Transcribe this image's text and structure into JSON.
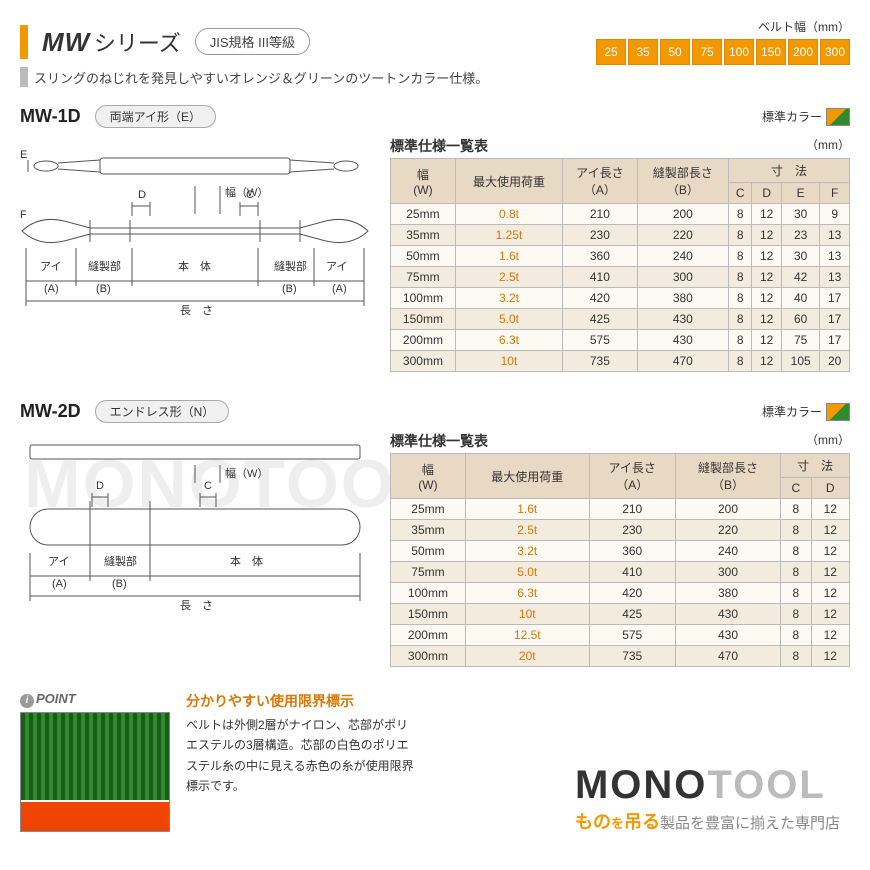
{
  "header": {
    "series_brand": "MW",
    "series_suffix": "シリーズ",
    "jis_badge": "JIS規格 III等級",
    "belt_width_label": "ベルト幅（mm）",
    "description": "スリングのねじれを発見しやすいオレンジ＆グリーンのツートンカラー仕様。",
    "widths": [
      "25",
      "35",
      "50",
      "75",
      "100",
      "150",
      "200",
      "300"
    ]
  },
  "sections": [
    {
      "id": "mw1d",
      "title": "MW-1D",
      "shape_badge": "両端アイ形（E）",
      "std_color_label": "標準カラー",
      "table_title": "標準仕様一覧表",
      "unit": "（mm）",
      "head_top": [
        "幅\n(W)",
        "最大使用荷重",
        "アイ長さ\n（A）",
        "縫製部長さ\n（B）",
        "寸　法"
      ],
      "head_sub": [
        "C",
        "D",
        "E",
        "F"
      ],
      "rows": [
        [
          "25mm",
          "0.8t",
          "210",
          "200",
          "8",
          "12",
          "30",
          "9"
        ],
        [
          "35mm",
          "1.25t",
          "230",
          "220",
          "8",
          "12",
          "23",
          "13"
        ],
        [
          "50mm",
          "1.6t",
          "360",
          "240",
          "8",
          "12",
          "30",
          "13"
        ],
        [
          "75mm",
          "2.5t",
          "410",
          "300",
          "8",
          "12",
          "42",
          "13"
        ],
        [
          "100mm",
          "3.2t",
          "420",
          "380",
          "8",
          "12",
          "40",
          "17"
        ],
        [
          "150mm",
          "5.0t",
          "425",
          "430",
          "8",
          "12",
          "60",
          "17"
        ],
        [
          "200mm",
          "6.3t",
          "575",
          "430",
          "8",
          "12",
          "75",
          "17"
        ],
        [
          "300mm",
          "10t",
          "735",
          "470",
          "8",
          "12",
          "105",
          "20"
        ]
      ],
      "diagram_labels": {
        "E": "E",
        "F": "F",
        "D": "D",
        "C": "C",
        "W": "幅（W）",
        "eye": "アイ",
        "sew": "縫製部",
        "body": "本　体",
        "A": "(A)",
        "B": "(B)",
        "len": "長　さ"
      }
    },
    {
      "id": "mw2d",
      "title": "MW-2D",
      "shape_badge": "エンドレス形（N）",
      "std_color_label": "標準カラー",
      "table_title": "標準仕様一覧表",
      "unit": "（mm）",
      "head_top": [
        "幅\n(W)",
        "最大使用荷重",
        "アイ長さ\n（A）",
        "縫製部長さ\n（B）",
        "寸　法"
      ],
      "head_sub": [
        "C",
        "D"
      ],
      "rows": [
        [
          "25mm",
          "1.6t",
          "210",
          "200",
          "8",
          "12"
        ],
        [
          "35mm",
          "2.5t",
          "230",
          "220",
          "8",
          "12"
        ],
        [
          "50mm",
          "3.2t",
          "360",
          "240",
          "8",
          "12"
        ],
        [
          "75mm",
          "5.0t",
          "410",
          "300",
          "8",
          "12"
        ],
        [
          "100mm",
          "6.3t",
          "420",
          "380",
          "8",
          "12"
        ],
        [
          "150mm",
          "10t",
          "425",
          "430",
          "8",
          "12"
        ],
        [
          "200mm",
          "12.5t",
          "575",
          "430",
          "8",
          "12"
        ],
        [
          "300mm",
          "20t",
          "735",
          "470",
          "8",
          "12"
        ]
      ],
      "diagram_labels": {
        "W": "幅（W）",
        "D": "D",
        "C": "C",
        "eye": "アイ",
        "sew": "縫製部",
        "body": "本　体",
        "A": "(A)",
        "B": "(B)",
        "len": "長　さ"
      }
    }
  ],
  "point": {
    "label": "POINT",
    "heading": "分かりやすい使用限界標示",
    "text": "ベルトは外側2層がナイロン、芯部がポリエステルの3層構造。芯部の白色のポリエステル糸の中に見える赤色の糸が使用限界標示です。"
  },
  "watermark": "MONOTOOL",
  "footer": {
    "logo_black": "MONO",
    "logo_gray": "TOOL",
    "tagline_pre": "もの",
    "tagline_mid": "を",
    "tagline_orange": "吊る",
    "tagline_post": "製品を豊富に揃えた専門店"
  }
}
